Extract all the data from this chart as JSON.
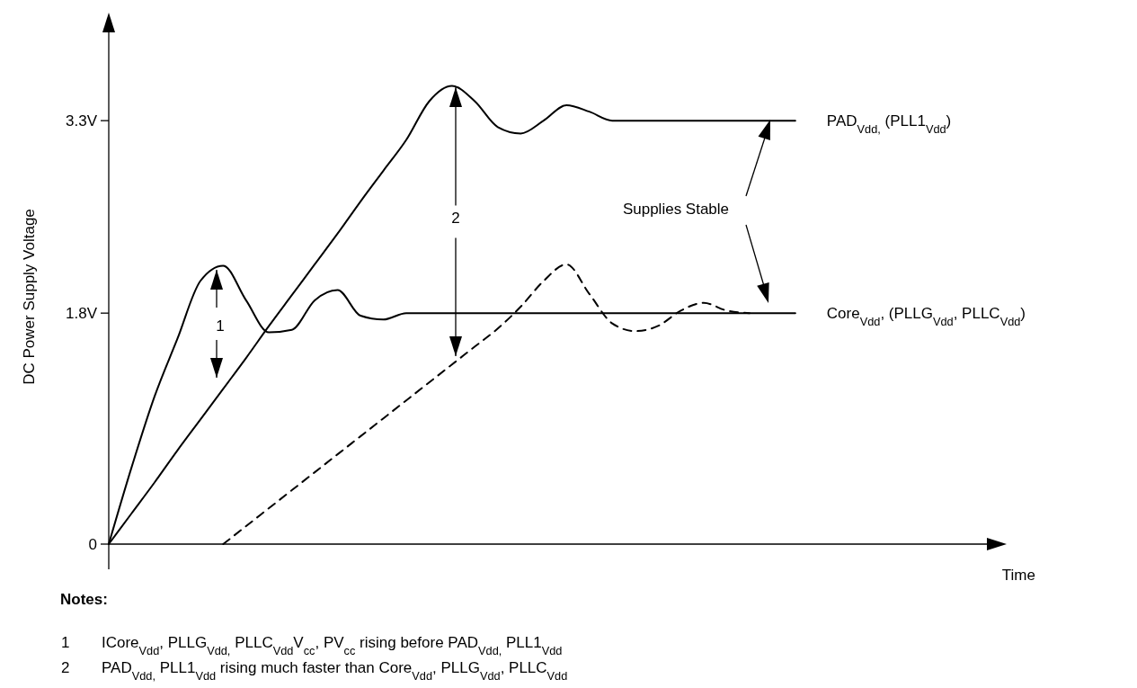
{
  "chart_data": {
    "type": "line",
    "ylabel": "DC Power Supply Voltage",
    "xlabel": "Time",
    "categories": [
      null,
      null,
      null,
      null,
      null,
      null,
      null,
      null,
      null,
      null,
      null,
      null,
      null,
      null,
      null,
      null,
      null,
      null,
      null,
      null,
      null,
      null,
      null,
      null,
      null,
      null,
      null,
      null,
      null,
      null,
      null,
      null,
      null,
      null,
      null,
      null,
      null,
      null,
      null,
      null
    ],
    "series": [
      {
        "name": "PAD$_{Vdd,}$ (PLL1$_{Vdd}$)",
        "color": "#000000",
        "line_style": "solid",
        "values": [
          0,
          0.24,
          0.48,
          0.73,
          0.97,
          1.21,
          1.45,
          1.7,
          1.94,
          2.18,
          2.42,
          2.67,
          2.91,
          3.15,
          3.45,
          3.57,
          3.45,
          3.25,
          3.2,
          3.3,
          3.42,
          3.37,
          3.3,
          3.3,
          3.3,
          3.3,
          3.3,
          3.3,
          3.3,
          3.3,
          3.3,
          null,
          null,
          null,
          null,
          null,
          null,
          null,
          null,
          null
        ]
      },
      {
        "name": "Core$_{Vdd}$, (PLLG$_{Vdd}$, PLLC$_{Vdd}$)",
        "color": "#000000",
        "line_style": "solid",
        "values": [
          0,
          0.6,
          1.15,
          1.6,
          2.05,
          2.17,
          1.9,
          1.65,
          1.67,
          1.9,
          1.98,
          1.78,
          1.75,
          1.8,
          1.8,
          1.8,
          1.8,
          1.8,
          1.8,
          1.8,
          1.8,
          1.8,
          1.8,
          1.8,
          1.8,
          1.8,
          1.8,
          1.8,
          1.8,
          1.8,
          1.8,
          null,
          null,
          null,
          null,
          null,
          null,
          null,
          null,
          null
        ]
      },
      {
        "color": "#000000",
        "line_style": "dashed",
        "values": [
          null,
          null,
          null,
          null,
          null,
          0,
          0.14,
          0.28,
          0.42,
          0.56,
          0.7,
          0.84,
          0.98,
          1.12,
          1.26,
          1.4,
          1.54,
          1.68,
          1.85,
          2.05,
          2.18,
          1.95,
          1.72,
          1.66,
          1.7,
          1.82,
          1.88,
          1.82,
          1.8,
          null,
          null,
          null,
          null,
          null,
          null,
          null,
          null,
          null,
          null,
          null
        ]
      }
    ],
    "ylim": [
      0,
      4.1
    ],
    "yticks": [
      0,
      {
        "value": 1.8,
        "label": "1.8V"
      },
      {
        "value": 3.3,
        "label": "3.3V"
      }
    ],
    "tick_labels": "y",
    "annotations": [
      "1",
      "2",
      "Supplies Stable",
      "Notes:",
      "1",
      "ICore$_{Vdd}$, PLLG$_{Vdd,}$ PLLC$_{Vdd}$V$_{cc}$, PV$_{cc}$ rising before PAD$_{Vdd,}$ PLL1$_{Vdd}$",
      "2",
      "PAD$_{Vdd,}$ PLL1$_{Vdd}$ rising much faster than Core$_{Vdd}$, PLLG$_{Vdd}$, PLLC$_{Vdd}$"
    ]
  }
}
